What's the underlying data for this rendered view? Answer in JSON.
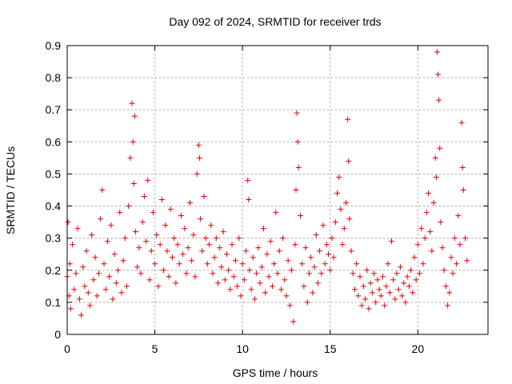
{
  "chart_data": {
    "type": "scatter",
    "title": "Day 092 of 2024, SRMTID for receiver trds",
    "xlabel": "GPS time / hours",
    "ylabel": "SRMTID / TECUs",
    "xlim": [
      0,
      24
    ],
    "ylim": [
      0,
      0.9
    ],
    "xticks": [
      0,
      5,
      10,
      15,
      20
    ],
    "xtick_labels": [
      "0",
      "5",
      "10",
      "15",
      "20"
    ],
    "yticks": [
      0,
      0.1,
      0.2,
      0.3,
      0.4,
      0.5,
      0.6,
      0.7,
      0.8,
      0.9
    ],
    "ytick_labels": [
      "0",
      "0.1",
      "0.2",
      "0.3",
      "0.4",
      "0.5",
      "0.6",
      "0.7",
      "0.8",
      "0.9"
    ],
    "grid": true,
    "marker": "+",
    "marker_color": "#e00000",
    "series": [
      {
        "name": "SRMTID",
        "x": [
          0.0,
          0.05,
          0.1,
          0.15,
          0.2,
          0.3,
          0.4,
          0.5,
          0.6,
          0.7,
          0.8,
          0.9,
          1.0,
          1.1,
          1.2,
          1.3,
          1.4,
          1.5,
          1.6,
          1.7,
          1.8,
          1.9,
          2.0,
          2.1,
          2.2,
          2.3,
          2.4,
          2.5,
          2.6,
          2.7,
          2.8,
          2.9,
          3.0,
          3.1,
          3.2,
          3.3,
          3.4,
          3.5,
          3.6,
          3.7,
          3.75,
          3.8,
          3.85,
          3.9,
          4.0,
          4.1,
          4.2,
          4.3,
          4.4,
          4.5,
          4.6,
          4.7,
          4.8,
          4.9,
          5.0,
          5.1,
          5.2,
          5.3,
          5.4,
          5.5,
          5.6,
          5.7,
          5.8,
          5.9,
          6.0,
          6.1,
          6.2,
          6.3,
          6.4,
          6.5,
          6.6,
          6.7,
          6.8,
          6.9,
          7.0,
          7.1,
          7.2,
          7.3,
          7.4,
          7.5,
          7.55,
          7.6,
          7.7,
          7.8,
          7.9,
          8.0,
          8.1,
          8.2,
          8.3,
          8.4,
          8.5,
          8.6,
          8.7,
          8.8,
          8.9,
          9.0,
          9.1,
          9.2,
          9.3,
          9.4,
          9.5,
          9.6,
          9.7,
          9.8,
          9.9,
          10.0,
          10.1,
          10.2,
          10.3,
          10.35,
          10.4,
          10.5,
          10.6,
          10.7,
          10.8,
          10.9,
          11.0,
          11.1,
          11.2,
          11.3,
          11.4,
          11.5,
          11.6,
          11.7,
          11.8,
          11.9,
          12.0,
          12.1,
          12.2,
          12.3,
          12.4,
          12.5,
          12.6,
          12.7,
          12.8,
          12.9,
          13.0,
          13.05,
          13.1,
          13.15,
          13.2,
          13.3,
          13.4,
          13.5,
          13.6,
          13.7,
          13.8,
          13.9,
          14.0,
          14.1,
          14.2,
          14.3,
          14.4,
          14.5,
          14.6,
          14.7,
          14.8,
          14.9,
          15.0,
          15.1,
          15.2,
          15.3,
          15.4,
          15.5,
          15.6,
          15.7,
          15.8,
          15.9,
          16.0,
          16.05,
          16.1,
          16.2,
          16.3,
          16.4,
          16.5,
          16.6,
          16.7,
          16.8,
          16.9,
          17.0,
          17.1,
          17.2,
          17.3,
          17.4,
          17.5,
          17.6,
          17.7,
          17.8,
          17.9,
          18.0,
          18.1,
          18.2,
          18.3,
          18.4,
          18.5,
          18.6,
          18.7,
          18.8,
          18.9,
          19.0,
          19.1,
          19.2,
          19.3,
          19.4,
          19.5,
          19.6,
          19.7,
          19.8,
          19.9,
          20.0,
          20.1,
          20.2,
          20.3,
          20.4,
          20.5,
          20.6,
          20.7,
          20.8,
          20.9,
          21.0,
          21.05,
          21.1,
          21.15,
          21.2,
          21.25,
          21.3,
          21.4,
          21.5,
          21.6,
          21.7,
          21.8,
          21.9,
          22.0,
          22.1,
          22.2,
          22.3,
          22.4,
          22.5,
          22.55,
          22.6,
          22.7,
          22.8
        ],
        "y": [
          0.18,
          0.35,
          0.12,
          0.22,
          0.08,
          0.28,
          0.14,
          0.19,
          0.33,
          0.11,
          0.06,
          0.21,
          0.15,
          0.26,
          0.13,
          0.09,
          0.31,
          0.17,
          0.24,
          0.12,
          0.19,
          0.36,
          0.45,
          0.22,
          0.14,
          0.29,
          0.18,
          0.34,
          0.11,
          0.25,
          0.16,
          0.2,
          0.38,
          0.13,
          0.23,
          0.3,
          0.15,
          0.4,
          0.55,
          0.72,
          0.6,
          0.47,
          0.68,
          0.32,
          0.21,
          0.27,
          0.19,
          0.35,
          0.43,
          0.29,
          0.48,
          0.17,
          0.26,
          0.38,
          0.22,
          0.31,
          0.15,
          0.28,
          0.42,
          0.2,
          0.34,
          0.26,
          0.18,
          0.39,
          0.24,
          0.3,
          0.16,
          0.28,
          0.22,
          0.37,
          0.25,
          0.33,
          0.19,
          0.27,
          0.41,
          0.23,
          0.31,
          0.18,
          0.5,
          0.59,
          0.55,
          0.36,
          0.26,
          0.43,
          0.3,
          0.22,
          0.28,
          0.34,
          0.19,
          0.24,
          0.3,
          0.16,
          0.27,
          0.21,
          0.32,
          0.17,
          0.25,
          0.2,
          0.14,
          0.28,
          0.18,
          0.23,
          0.15,
          0.3,
          0.12,
          0.22,
          0.17,
          0.26,
          0.48,
          0.42,
          0.2,
          0.14,
          0.24,
          0.11,
          0.19,
          0.27,
          0.16,
          0.21,
          0.33,
          0.13,
          0.25,
          0.18,
          0.29,
          0.15,
          0.22,
          0.38,
          0.19,
          0.26,
          0.14,
          0.3,
          0.17,
          0.12,
          0.23,
          0.09,
          0.2,
          0.04,
          0.28,
          0.45,
          0.69,
          0.6,
          0.52,
          0.37,
          0.22,
          0.15,
          0.27,
          0.1,
          0.19,
          0.24,
          0.13,
          0.21,
          0.31,
          0.16,
          0.26,
          0.19,
          0.34,
          0.22,
          0.28,
          0.25,
          0.2,
          0.3,
          0.24,
          0.35,
          0.44,
          0.49,
          0.39,
          0.28,
          0.33,
          0.41,
          0.67,
          0.54,
          0.36,
          0.26,
          0.19,
          0.14,
          0.22,
          0.12,
          0.18,
          0.09,
          0.15,
          0.11,
          0.2,
          0.08,
          0.16,
          0.13,
          0.19,
          0.1,
          0.17,
          0.14,
          0.12,
          0.18,
          0.09,
          0.15,
          0.22,
          0.13,
          0.29,
          0.17,
          0.11,
          0.19,
          0.14,
          0.21,
          0.12,
          0.16,
          0.1,
          0.18,
          0.15,
          0.2,
          0.13,
          0.24,
          0.17,
          0.28,
          0.19,
          0.33,
          0.22,
          0.3,
          0.38,
          0.44,
          0.32,
          0.26,
          0.41,
          0.55,
          0.49,
          0.88,
          0.81,
          0.73,
          0.58,
          0.35,
          0.27,
          0.2,
          0.15,
          0.09,
          0.13,
          0.24,
          0.19,
          0.3,
          0.22,
          0.37,
          0.28,
          0.66,
          0.52,
          0.45,
          0.3,
          0.23
        ]
      }
    ]
  }
}
